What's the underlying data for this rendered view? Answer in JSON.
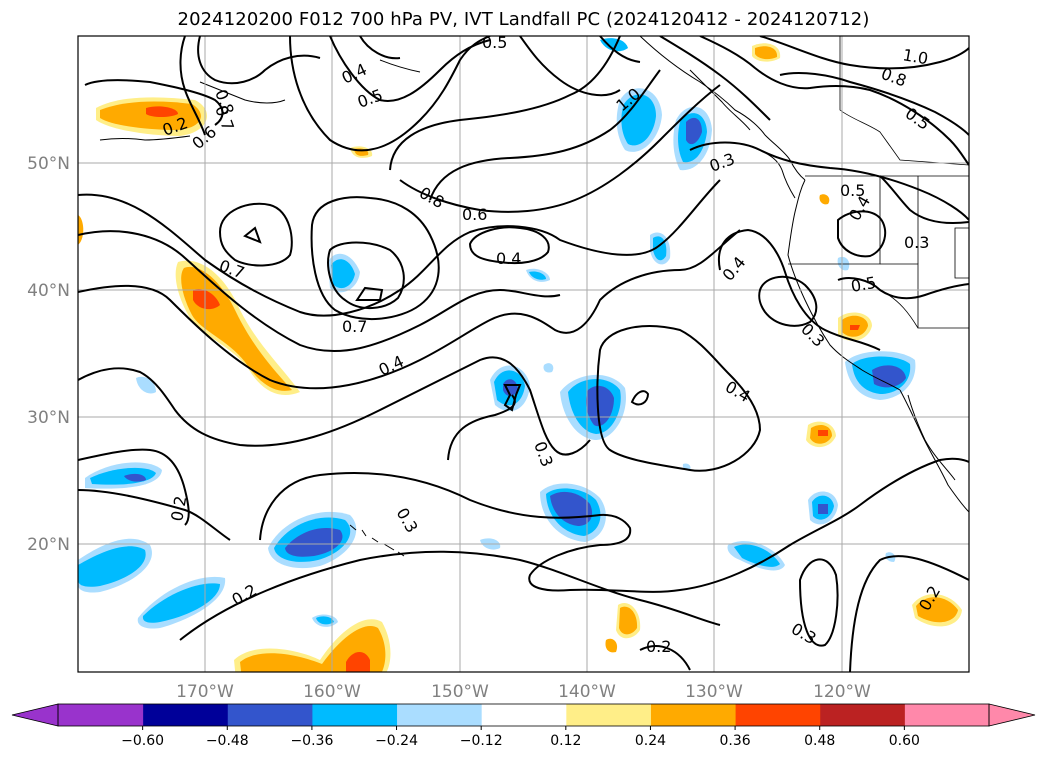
{
  "title": "2024120200 F012 700 hPa PV, IVT Landfall PC (2024120412 - 2024120712)",
  "lat_labels": [
    "50°N",
    "40°N",
    "30°N",
    "20°N"
  ],
  "lon_labels": [
    "170°W",
    "160°W",
    "150°W",
    "140°W",
    "130°W",
    "120°W"
  ],
  "colorbar": {
    "ticks": [
      "−0.60",
      "−0.48",
      "−0.36",
      "−0.24",
      "−0.12",
      "0.12",
      "0.24",
      "0.36",
      "0.48",
      "0.60"
    ],
    "colors": [
      "#9933cc",
      "#000099",
      "#3355cc",
      "#00bbff",
      "#aaddff",
      "#ffffff",
      "#ffee88",
      "#ffaa00",
      "#ff4400",
      "#bb2222",
      "#ff88aa"
    ]
  },
  "contour_labels": [
    "0.5",
    "0.4",
    "0.5",
    "1.0",
    "0.8",
    "0.5",
    "0.8",
    "0.7",
    "0.6",
    "0.2",
    "1.0",
    "0.3",
    "0.8",
    "0.6",
    "0.5",
    "0.4",
    "0.3",
    "0.4",
    "0.7",
    "0.7",
    "0.4",
    "0.4",
    "0.4",
    "0.3",
    "0.5",
    "0.3",
    "0.2",
    "0.3",
    "0.2",
    "0.2",
    "0.3",
    "0.2"
  ]
}
